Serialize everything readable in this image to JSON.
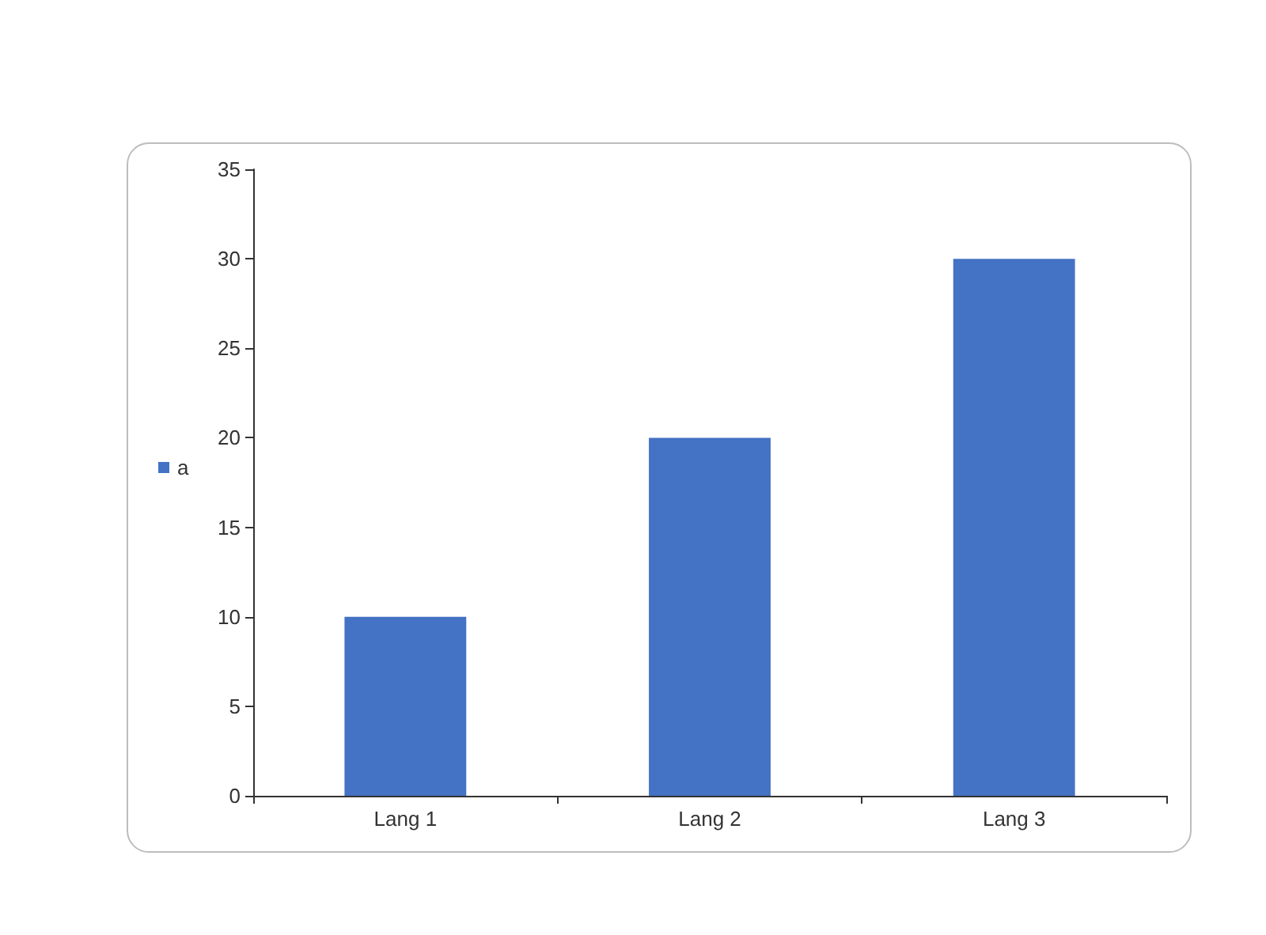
{
  "chart_data": {
    "type": "bar",
    "categories": [
      "Lang 1",
      "Lang 2",
      "Lang 3"
    ],
    "series": [
      {
        "name": "a",
        "color": "#4472c4",
        "values": [
          10,
          20,
          30
        ]
      }
    ],
    "ylim": [
      0,
      35
    ],
    "yticks": [
      0,
      5,
      10,
      15,
      20,
      25,
      30,
      35
    ],
    "grid": false,
    "legend": "left"
  }
}
